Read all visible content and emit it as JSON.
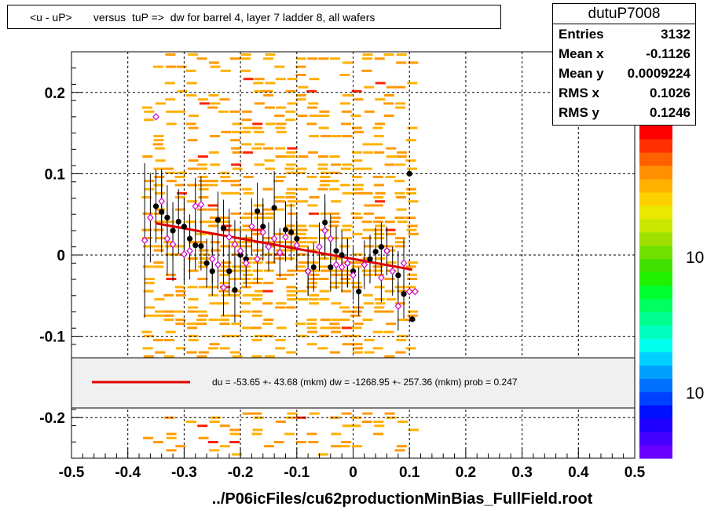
{
  "title": "<u - uP>       versus  tuP =>  dw for barrel 4, layer 7 ladder 8, all wafers",
  "stats": {
    "name": "dutuP7008",
    "rows": [
      {
        "label": "Entries",
        "value": "3132"
      },
      {
        "label": "Mean x",
        "value": "-0.1126"
      },
      {
        "label": "Mean y",
        "value": "0.0009224"
      },
      {
        "label": "RMS x",
        "value": "0.1026"
      },
      {
        "label": "RMS y",
        "value": "0.1246"
      }
    ]
  },
  "legend": {
    "text": "du =  -53.65 +- 43.68 (mkm) dw = -1268.95 +- 257.36 (mkm) prob = 0.247",
    "line_color": "#dd0000"
  },
  "colorbar": {
    "labels": [
      "10",
      "10"
    ],
    "colors": [
      "#6a00ff",
      "#4400ff",
      "#1f00ff",
      "#0010ff",
      "#0040ff",
      "#0070ff",
      "#00a0ff",
      "#00d0ff",
      "#00ffee",
      "#00ffc0",
      "#00ff90",
      "#00ff60",
      "#00ff30",
      "#20f000",
      "#40e000",
      "#70e000",
      "#a0e000",
      "#c8e800",
      "#e8e800",
      "#ffd000",
      "#ffb000",
      "#ff9000",
      "#ff6000",
      "#ff3000",
      "#ff0000"
    ]
  },
  "chart_data": {
    "type": "scatter",
    "title": "<u - uP>       versus  tuP =>  dw for barrel 4, layer 7 ladder 8, all wafers",
    "xlabel": "../P06icFiles/cu62productionMinBias_FullField.root",
    "ylabel": "",
    "xlim": [
      -0.5,
      0.5
    ],
    "ylim": [
      -0.25,
      0.25
    ],
    "x_ticks": [
      "-0.5",
      "-0.4",
      "-0.3",
      "-0.2",
      "-0.1",
      "0",
      "0.1",
      "0.2",
      "0.3",
      "0.4",
      "0.5"
    ],
    "y_ticks": [
      "-0.2",
      "-0.1",
      "0",
      "0.1",
      "0.2"
    ],
    "grid": true,
    "series": [
      {
        "marker": "filled-circle",
        "color": "#000000",
        "points": [
          {
            "x": -0.35,
            "y": 0.06,
            "err": 0.045
          },
          {
            "x": -0.34,
            "y": 0.053,
            "err": 0.05
          },
          {
            "x": -0.33,
            "y": 0.046,
            "err": 0.04
          },
          {
            "x": -0.32,
            "y": 0.03,
            "err": 0.035
          },
          {
            "x": -0.31,
            "y": 0.041,
            "err": 0.04
          },
          {
            "x": -0.3,
            "y": 0.035,
            "err": 0.035
          },
          {
            "x": -0.29,
            "y": 0.02,
            "err": 0.03
          },
          {
            "x": -0.28,
            "y": 0.012,
            "err": 0.03
          },
          {
            "x": -0.27,
            "y": 0.011,
            "err": 0.03
          },
          {
            "x": -0.26,
            "y": -0.01,
            "err": 0.03
          },
          {
            "x": -0.25,
            "y": -0.02,
            "err": 0.03
          },
          {
            "x": -0.24,
            "y": 0.043,
            "err": 0.035
          },
          {
            "x": -0.23,
            "y": 0.033,
            "err": 0.035
          },
          {
            "x": -0.22,
            "y": -0.02,
            "err": 0.03
          },
          {
            "x": -0.21,
            "y": -0.043,
            "err": 0.04
          },
          {
            "x": -0.2,
            "y": 0.0,
            "err": 0.03
          },
          {
            "x": -0.19,
            "y": -0.005,
            "err": 0.03
          },
          {
            "x": -0.17,
            "y": 0.054,
            "err": 0.035
          },
          {
            "x": -0.16,
            "y": 0.035,
            "err": 0.035
          },
          {
            "x": -0.14,
            "y": 0.058,
            "err": 0.045
          },
          {
            "x": -0.12,
            "y": 0.031,
            "err": 0.035
          },
          {
            "x": -0.11,
            "y": 0.028,
            "err": 0.035
          },
          {
            "x": -0.1,
            "y": 0.02,
            "err": 0.03
          },
          {
            "x": -0.08,
            "y": -0.02,
            "err": 0.03
          },
          {
            "x": -0.07,
            "y": -0.015,
            "err": 0.03
          },
          {
            "x": -0.05,
            "y": 0.04,
            "err": 0.035
          },
          {
            "x": -0.04,
            "y": -0.015,
            "err": 0.03
          },
          {
            "x": -0.03,
            "y": 0.005,
            "err": 0.03
          },
          {
            "x": -0.02,
            "y": 0.0,
            "err": 0.03
          },
          {
            "x": -0.01,
            "y": -0.01,
            "err": 0.03
          },
          {
            "x": 0.0,
            "y": -0.02,
            "err": 0.03
          },
          {
            "x": 0.01,
            "y": -0.045,
            "err": 0.03
          },
          {
            "x": 0.03,
            "y": -0.005,
            "err": 0.03
          },
          {
            "x": 0.04,
            "y": 0.004,
            "err": 0.03
          },
          {
            "x": 0.05,
            "y": 0.01,
            "err": 0.03
          },
          {
            "x": 0.06,
            "y": 0.005,
            "err": 0.03
          },
          {
            "x": 0.08,
            "y": -0.025,
            "err": 0.03
          },
          {
            "x": 0.09,
            "y": -0.048,
            "err": 0.03
          },
          {
            "x": 0.1,
            "y": 0.1,
            "err": 0.0
          },
          {
            "x": 0.105,
            "y": -0.079,
            "err": 0.0
          }
        ]
      },
      {
        "marker": "open-diamond",
        "color": "#cc00cc",
        "points": [
          {
            "x": -0.37,
            "y": 0.018,
            "err": 0.095
          },
          {
            "x": -0.36,
            "y": 0.046,
            "err": 0.055
          },
          {
            "x": -0.35,
            "y": 0.17,
            "err": 0.0
          },
          {
            "x": -0.34,
            "y": 0.066,
            "err": 0.04
          },
          {
            "x": -0.33,
            "y": 0.02,
            "err": 0.045
          },
          {
            "x": -0.32,
            "y": 0.013,
            "err": 0.045
          },
          {
            "x": -0.3,
            "y": 0.001,
            "err": 0.035
          },
          {
            "x": -0.29,
            "y": 0.005,
            "err": 0.035
          },
          {
            "x": -0.28,
            "y": 0.06,
            "err": 0.035
          },
          {
            "x": -0.27,
            "y": 0.062,
            "err": 0.035
          },
          {
            "x": -0.25,
            "y": -0.005,
            "err": 0.03
          },
          {
            "x": -0.24,
            "y": -0.012,
            "err": 0.03
          },
          {
            "x": -0.23,
            "y": -0.04,
            "err": 0.035
          },
          {
            "x": -0.22,
            "y": 0.022,
            "err": 0.035
          },
          {
            "x": -0.21,
            "y": 0.013,
            "err": 0.03
          },
          {
            "x": -0.2,
            "y": 0.005,
            "err": 0.03
          },
          {
            "x": -0.19,
            "y": -0.01,
            "err": 0.03
          },
          {
            "x": -0.18,
            "y": 0.035,
            "err": 0.035
          },
          {
            "x": -0.17,
            "y": -0.005,
            "err": 0.03
          },
          {
            "x": -0.16,
            "y": 0.028,
            "err": 0.035
          },
          {
            "x": -0.15,
            "y": 0.01,
            "err": 0.03
          },
          {
            "x": -0.14,
            "y": 0.02,
            "err": 0.03
          },
          {
            "x": -0.13,
            "y": 0.003,
            "err": 0.03
          },
          {
            "x": -0.12,
            "y": 0.022,
            "err": 0.03
          },
          {
            "x": -0.1,
            "y": 0.012,
            "err": 0.03
          },
          {
            "x": -0.08,
            "y": -0.02,
            "err": 0.03
          },
          {
            "x": -0.06,
            "y": 0.01,
            "err": 0.03
          },
          {
            "x": -0.05,
            "y": 0.03,
            "err": 0.035
          },
          {
            "x": -0.04,
            "y": 0.02,
            "err": 0.03
          },
          {
            "x": -0.03,
            "y": -0.012,
            "err": 0.03
          },
          {
            "x": -0.02,
            "y": -0.015,
            "err": 0.03
          },
          {
            "x": -0.01,
            "y": -0.01,
            "err": 0.03
          },
          {
            "x": 0.0,
            "y": -0.025,
            "err": 0.03
          },
          {
            "x": 0.02,
            "y": -0.012,
            "err": 0.03
          },
          {
            "x": 0.05,
            "y": -0.028,
            "err": 0.03
          },
          {
            "x": 0.06,
            "y": 0.005,
            "err": 0.03
          },
          {
            "x": 0.07,
            "y": -0.02,
            "err": 0.03
          },
          {
            "x": 0.08,
            "y": -0.063,
            "err": 0.03
          },
          {
            "x": 0.09,
            "y": -0.01,
            "err": 0.03
          },
          {
            "x": 0.1,
            "y": -0.045,
            "err": 0.0
          },
          {
            "x": 0.11,
            "y": -0.045,
            "err": 0.0
          }
        ]
      }
    ],
    "fit_line": {
      "x": [
        -0.35,
        0.105
      ],
      "y": [
        0.039,
        -0.018
      ],
      "color": "#dd0000"
    }
  }
}
